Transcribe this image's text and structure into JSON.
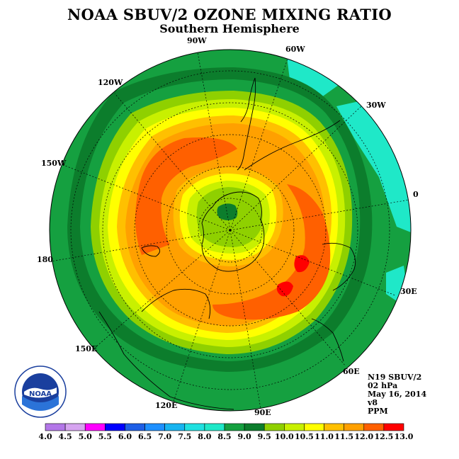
{
  "title": "NOAA SBUV/2 OZONE MIXING RATIO",
  "subtitle": "Southern Hemisphere",
  "longitude_labels": {
    "w90": "90W",
    "w60": "60W",
    "w30": "30W",
    "zero": "0",
    "e30": "30E",
    "e60": "60E",
    "e90": "90E",
    "e120": "120E",
    "e150": "150E",
    "lon180": "180",
    "w150": "150W",
    "w120": "120W"
  },
  "info": {
    "satellite": "N19 SBUV/2",
    "level": "02 hPa",
    "date": "May 16, 2014",
    "version": "v8",
    "units": "PPM"
  },
  "logo": {
    "text": "NOAA",
    "icon": "noaa-logo"
  },
  "colorbar": {
    "labels": [
      "4.0",
      "4.5",
      "5.0",
      "5.5",
      "6.0",
      "6.5",
      "7.0",
      "7.5",
      "8.0",
      "8.5",
      "9.0",
      "9.5",
      "10.0",
      "10.5",
      "11.0",
      "11.5",
      "12.0",
      "12.5",
      "13.0"
    ],
    "colors": [
      "#b377e8",
      "#d6a4f0",
      "#ff00ff",
      "#0000ff",
      "#1e5fe6",
      "#1e90ff",
      "#18b4f0",
      "#20e0e0",
      "#1fe8c8",
      "#15a040",
      "#0c7d2c",
      "#8fd000",
      "#c8f000",
      "#ffff00",
      "#ffc000",
      "#ffa000",
      "#ff6000",
      "#ff0000",
      "#8b5a3c"
    ]
  },
  "chart_data": {
    "type": "heatmap",
    "projection": "south-polar-stereographic",
    "variable": "ozone mixing ratio",
    "units": "PPM",
    "contour_levels": [
      4.0,
      4.5,
      5.0,
      5.5,
      6.0,
      6.5,
      7.0,
      7.5,
      8.0,
      8.5,
      9.0,
      9.5,
      10.0,
      10.5,
      11.0,
      11.5,
      12.0,
      12.5,
      13.0
    ],
    "field_summary": {
      "pole_center_min": 8.5,
      "inner_ring": [
        9.0,
        10.0
      ],
      "mid_latitude_max_band": [
        11.0,
        12.0
      ],
      "local_max_near_30E_45S": 12.0,
      "outer_band": [
        8.0,
        9.5
      ],
      "low_latitude_min_near_30W_and_30E": 8.0
    }
  }
}
